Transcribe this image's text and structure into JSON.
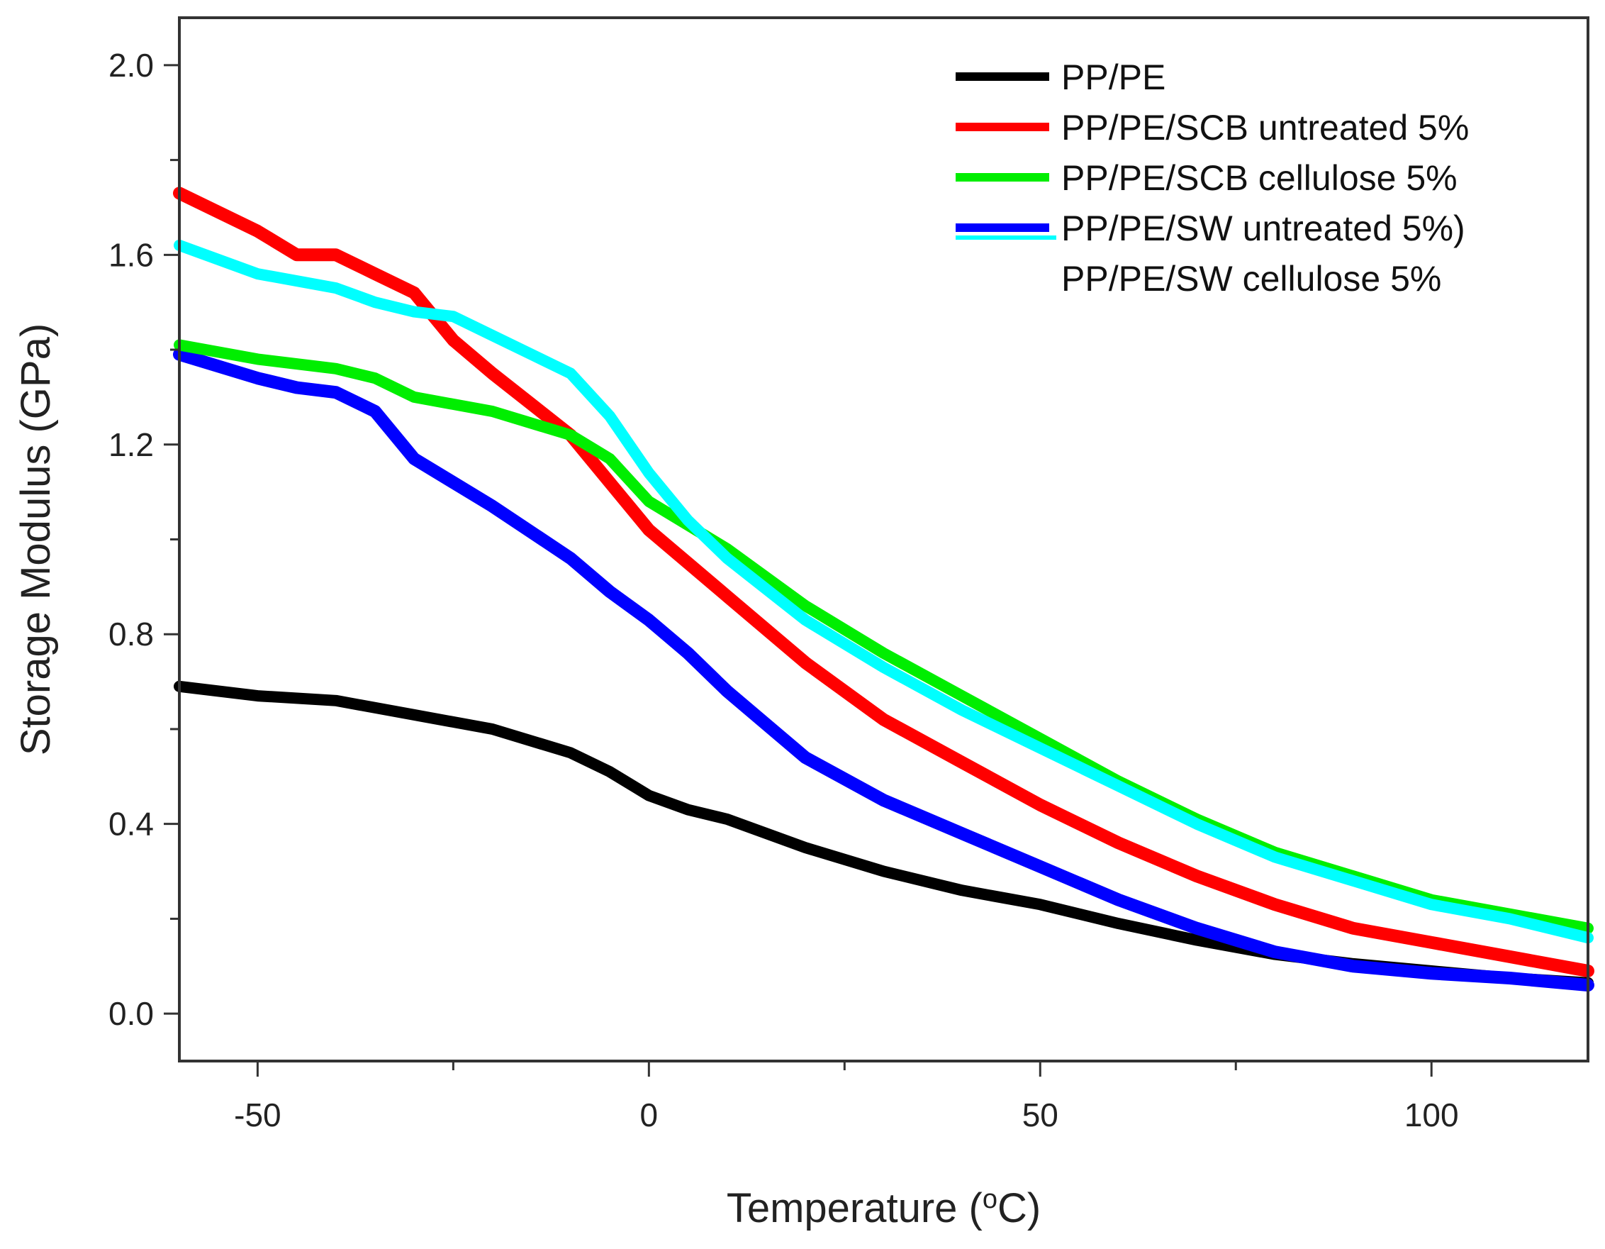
{
  "chart_data": {
    "type": "line",
    "title": "",
    "xlabel_main": "Temperature (",
    "xlabel_sup": "o",
    "xlabel_unit": "C)",
    "ylabel": "Storage Modulus (GPa)",
    "xlim": [
      -60,
      120
    ],
    "ylim": [
      -0.1,
      2.1
    ],
    "xticks": [
      -50,
      0,
      50,
      100
    ],
    "xtick_labels": [
      "-50",
      "0",
      "50",
      "100"
    ],
    "yticks": [
      0.0,
      0.4,
      0.8,
      1.2,
      1.6,
      2.0
    ],
    "ytick_labels": [
      "0.0",
      "0.4",
      "0.8",
      "1.2",
      "1.6",
      "2.0"
    ],
    "legend_position": "top-right",
    "series": [
      {
        "name": "PP/PE",
        "color": "#000000",
        "x": [
          -60,
          -50,
          -40,
          -30,
          -20,
          -10,
          -5,
          0,
          5,
          10,
          20,
          30,
          40,
          50,
          60,
          70,
          80,
          90,
          100,
          110,
          120
        ],
        "y": [
          0.69,
          0.67,
          0.66,
          0.63,
          0.6,
          0.55,
          0.51,
          0.46,
          0.43,
          0.41,
          0.35,
          0.3,
          0.26,
          0.23,
          0.19,
          0.155,
          0.125,
          0.105,
          0.09,
          0.075,
          0.065
        ]
      },
      {
        "name": "PP/PE/SCB  untreated  5%",
        "color": "#ff0000",
        "x": [
          -60,
          -50,
          -45,
          -40,
          -35,
          -30,
          -25,
          -20,
          -10,
          -5,
          0,
          5,
          10,
          20,
          30,
          40,
          50,
          60,
          70,
          80,
          90,
          100,
          110,
          120
        ],
        "y": [
          1.73,
          1.65,
          1.6,
          1.6,
          1.56,
          1.52,
          1.42,
          1.35,
          1.22,
          1.12,
          1.02,
          0.95,
          0.88,
          0.74,
          0.62,
          0.53,
          0.44,
          0.36,
          0.29,
          0.23,
          0.18,
          0.15,
          0.12,
          0.09
        ]
      },
      {
        "name": "PP/PE/SCB  cellulose  5%",
        "color": "#00ee00",
        "x": [
          -60,
          -50,
          -40,
          -35,
          -30,
          -20,
          -10,
          -5,
          0,
          5,
          10,
          20,
          30,
          40,
          50,
          60,
          70,
          80,
          90,
          100,
          110,
          120
        ],
        "y": [
          1.41,
          1.38,
          1.36,
          1.34,
          1.3,
          1.27,
          1.22,
          1.17,
          1.08,
          1.03,
          0.98,
          0.86,
          0.76,
          0.67,
          0.58,
          0.49,
          0.41,
          0.34,
          0.29,
          0.24,
          0.21,
          0.18
        ]
      },
      {
        "name": "PP/PE/SW  untreated  5%)",
        "color": "#0000ff",
        "x": [
          -60,
          -50,
          -45,
          -40,
          -35,
          -30,
          -20,
          -10,
          -5,
          0,
          5,
          10,
          20,
          30,
          40,
          50,
          60,
          70,
          80,
          90,
          100,
          110,
          120
        ],
        "y": [
          1.39,
          1.34,
          1.32,
          1.31,
          1.27,
          1.17,
          1.07,
          0.96,
          0.89,
          0.83,
          0.76,
          0.68,
          0.54,
          0.45,
          0.38,
          0.31,
          0.24,
          0.18,
          0.13,
          0.1,
          0.085,
          0.075,
          0.06
        ]
      },
      {
        "name": "PP/PE/SW  cellulose  5%",
        "color": "#00ffff",
        "x": [
          -60,
          -50,
          -40,
          -35,
          -30,
          -25,
          -20,
          -10,
          -5,
          0,
          5,
          10,
          20,
          30,
          40,
          50,
          60,
          70,
          80,
          90,
          100,
          110,
          120
        ],
        "y": [
          1.62,
          1.56,
          1.53,
          1.5,
          1.48,
          1.47,
          1.43,
          1.35,
          1.26,
          1.14,
          1.04,
          0.96,
          0.83,
          0.73,
          0.64,
          0.56,
          0.48,
          0.4,
          0.33,
          0.28,
          0.23,
          0.2,
          0.16
        ]
      }
    ]
  }
}
